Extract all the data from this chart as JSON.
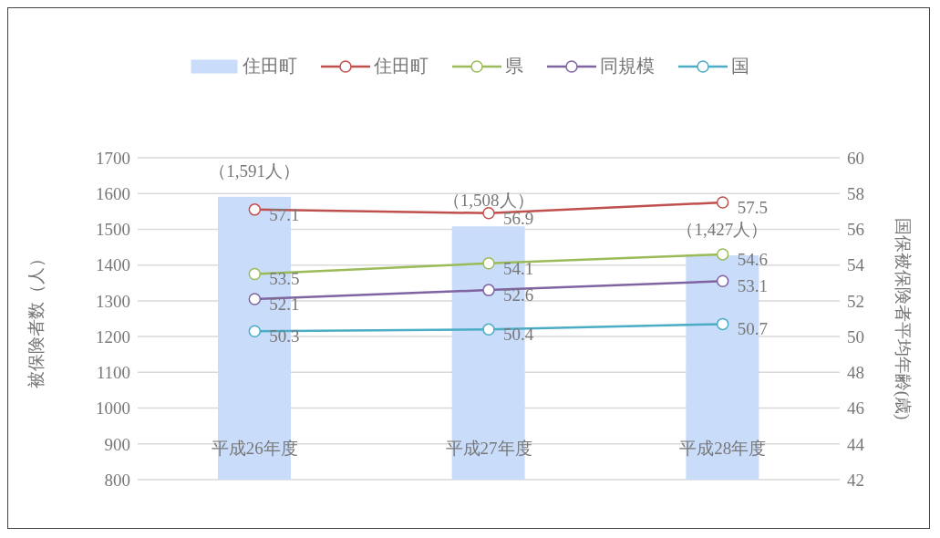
{
  "chart_data": {
    "type": "bar",
    "categories": [
      "平成26年度",
      "平成27年度",
      "平成28年度"
    ],
    "series": [
      {
        "name": "住田町",
        "color": "#c9dcfa",
        "values": [
          1591,
          1508,
          1427
        ],
        "value_labels": [
          "（1,591人）",
          "（1,508人）",
          "（1,427人）"
        ]
      },
      {
        "name": "住田町",
        "type": "line",
        "axis": "y2",
        "color": "#c0504d",
        "values": [
          57.1,
          56.9,
          57.5
        ]
      },
      {
        "name": "県",
        "type": "line",
        "axis": "y2",
        "color": "#9bbb59",
        "values": [
          53.5,
          54.1,
          54.6
        ]
      },
      {
        "name": "同規模",
        "type": "line",
        "axis": "y2",
        "color": "#8064a2",
        "values": [
          52.1,
          52.6,
          53.1
        ]
      },
      {
        "name": "国",
        "type": "line",
        "axis": "y2",
        "color": "#4bacc6",
        "values": [
          50.3,
          50.4,
          50.7
        ]
      }
    ],
    "ylabel": "被保険者数（人）",
    "y2label": "国保被保険者平均年齢(歳)",
    "ylim": [
      800,
      1700
    ],
    "yticks": [
      800,
      900,
      1000,
      1100,
      1200,
      1300,
      1400,
      1500,
      1600,
      1700
    ],
    "y2lim": [
      42,
      60
    ],
    "y2ticks": [
      42,
      44,
      46,
      48,
      50,
      52,
      54,
      56,
      58,
      60
    ],
    "grid": "y",
    "legend": "top",
    "marker": "circle",
    "data_labels": true
  }
}
